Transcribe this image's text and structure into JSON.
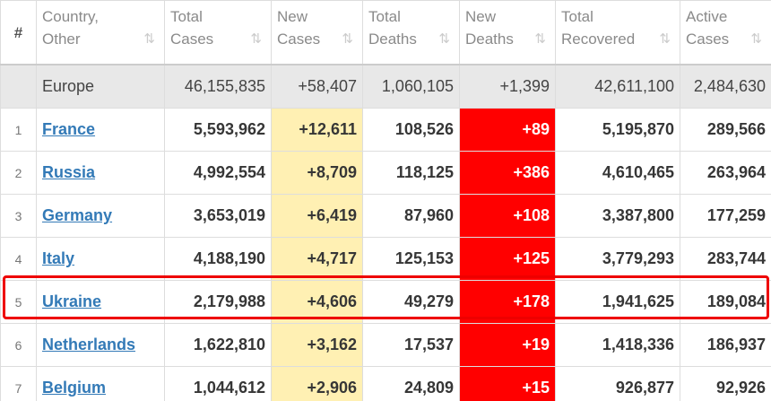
{
  "table": {
    "header": [
      "#",
      "Country,\nOther",
      "Total\nCases",
      "New\nCases",
      "Total\nDeaths",
      "New\nDeaths",
      "Total\nRecovered",
      "Active\nCases"
    ],
    "summary": [
      "Europe",
      "46,155,835",
      "+58,407",
      "1,060,105",
      "+1,399",
      "42,611,100",
      "2,484,630"
    ],
    "rows": [
      [
        "1",
        "France",
        "5,593,962",
        "+12,611",
        "108,526",
        "+89",
        "5,195,870",
        "289,566"
      ],
      [
        "2",
        "Russia",
        "4,992,554",
        "+8,709",
        "118,125",
        "+386",
        "4,610,465",
        "263,964"
      ],
      [
        "3",
        "Germany",
        "3,653,019",
        "+6,419",
        "87,960",
        "+108",
        "3,387,800",
        "177,259"
      ],
      [
        "4",
        "Italy",
        "4,188,190",
        "+4,717",
        "125,153",
        "+125",
        "3,779,293",
        "283,744"
      ],
      [
        "5",
        "Ukraine",
        "2,179,988",
        "+4,606",
        "49,279",
        "+178",
        "1,941,625",
        "189,084"
      ],
      [
        "6",
        "Netherlands",
        "1,622,810",
        "+3,162",
        "17,537",
        "+19",
        "1,418,336",
        "186,937"
      ],
      [
        "7",
        "Belgium",
        "1,044,612",
        "+2,906",
        "24,809",
        "+15",
        "926,877",
        "92,926"
      ]
    ]
  }
}
